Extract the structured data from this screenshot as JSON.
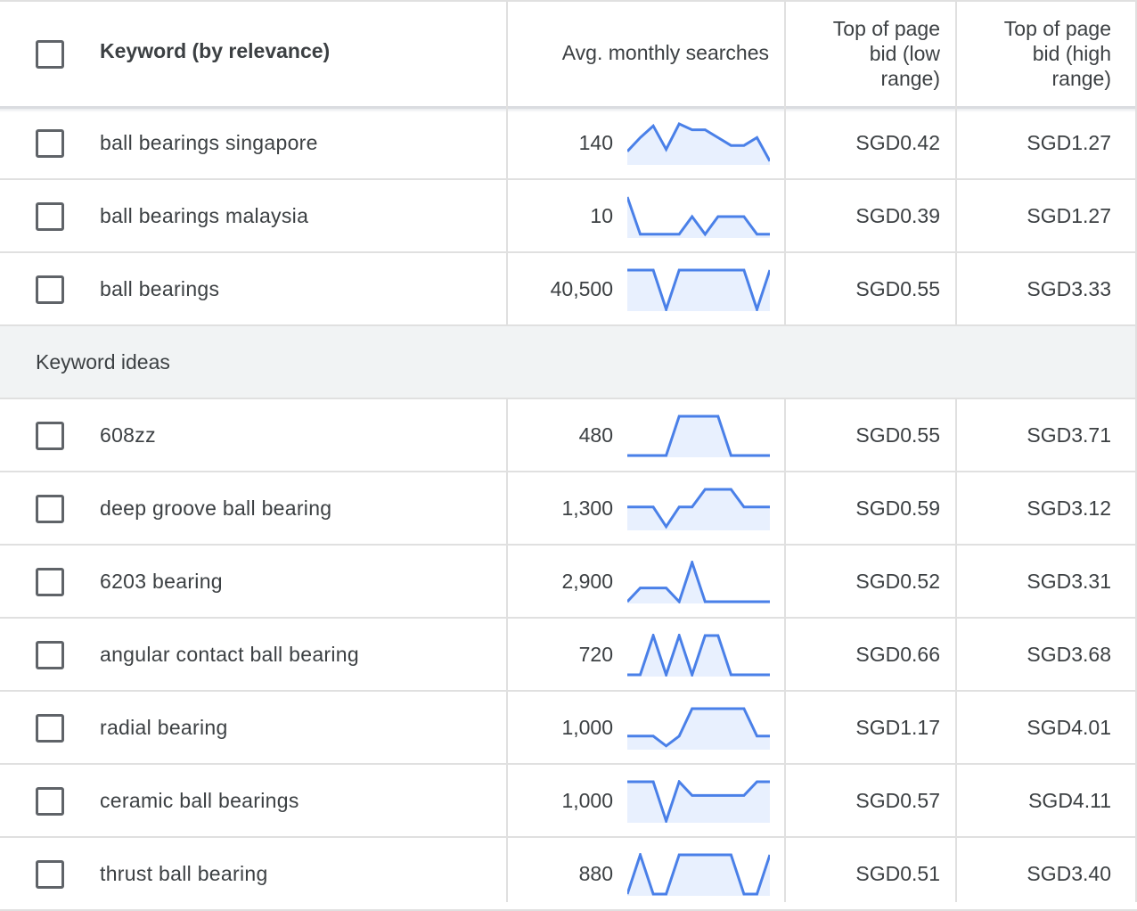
{
  "header": {
    "keyword_label": "Keyword (by relevance)",
    "avg_label": "Avg. monthly searches",
    "low_bid_label": "Top of page\nbid (low\nrange)",
    "high_bid_label": "Top of page\nbid (high\nrange)"
  },
  "colors": {
    "spark_line": "#4a80e8",
    "spark_fill": "#e8f0fe",
    "section_bg": "#f1f3f4"
  },
  "rows": [
    {
      "keyword": "ball bearings singapore",
      "searches": "140",
      "low_bid": "SGD0.42",
      "high_bid": "SGD1.27",
      "trend": [
        0.3,
        0.65,
        0.95,
        0.35,
        1.0,
        0.85,
        0.85,
        0.65,
        0.45,
        0.45,
        0.65,
        0.05
      ]
    },
    {
      "keyword": "ball bearings malaysia",
      "searches": "10",
      "low_bid": "SGD0.39",
      "high_bid": "SGD1.27",
      "trend": [
        1.0,
        0.05,
        0.05,
        0.05,
        0.05,
        0.5,
        0.05,
        0.5,
        0.5,
        0.5,
        0.05,
        0.05
      ]
    },
    {
      "keyword": "ball bearings",
      "searches": "40,500",
      "low_bid": "SGD0.55",
      "high_bid": "SGD3.33",
      "trend": [
        1.0,
        1.0,
        1.0,
        0.0,
        1.0,
        1.0,
        1.0,
        1.0,
        1.0,
        1.0,
        0.0,
        1.0
      ]
    },
    {
      "keyword": "608zz",
      "searches": "480",
      "low_bid": "SGD0.55",
      "high_bid": "SGD3.71",
      "trend": [
        0.0,
        0.0,
        0.0,
        0.0,
        1.0,
        1.0,
        1.0,
        1.0,
        0.0,
        0.0,
        0.0,
        0.0
      ]
    },
    {
      "keyword": "deep groove ball bearing",
      "searches": "1,300",
      "low_bid": "SGD0.59",
      "high_bid": "SGD3.12",
      "trend": [
        0.55,
        0.55,
        0.55,
        0.05,
        0.55,
        0.55,
        1.0,
        1.0,
        1.0,
        0.55,
        0.55,
        0.55
      ]
    },
    {
      "keyword": "6203 bearing",
      "searches": "2,900",
      "low_bid": "SGD0.52",
      "high_bid": "SGD3.31",
      "trend": [
        0.0,
        0.35,
        0.35,
        0.35,
        0.0,
        1.0,
        0.0,
        0.0,
        0.0,
        0.0,
        0.0,
        0.0
      ]
    },
    {
      "keyword": "angular contact ball bearing",
      "searches": "720",
      "low_bid": "SGD0.66",
      "high_bid": "SGD3.68",
      "trend": [
        0.0,
        0.0,
        1.0,
        0.0,
        1.0,
        0.0,
        1.0,
        1.0,
        0.0,
        0.0,
        0.0,
        0.0
      ]
    },
    {
      "keyword": "radial bearing",
      "searches": "1,000",
      "low_bid": "SGD1.17",
      "high_bid": "SGD4.01",
      "trend": [
        0.3,
        0.3,
        0.3,
        0.05,
        0.3,
        1.0,
        1.0,
        1.0,
        1.0,
        1.0,
        0.3,
        0.3
      ]
    },
    {
      "keyword": "ceramic ball bearings",
      "searches": "1,000",
      "low_bid": "SGD0.57",
      "high_bid": "SGD4.11",
      "trend": [
        1.0,
        1.0,
        1.0,
        0.0,
        1.0,
        0.65,
        0.65,
        0.65,
        0.65,
        0.65,
        1.0,
        1.0
      ]
    },
    {
      "keyword": "thrust ball bearing",
      "searches": "880",
      "low_bid": "SGD0.51",
      "high_bid": "SGD3.40",
      "trend": [
        0.0,
        1.0,
        0.0,
        0.0,
        1.0,
        1.0,
        1.0,
        1.0,
        1.0,
        0.0,
        0.0,
        1.0
      ]
    }
  ],
  "section": {
    "label": "Keyword ideas"
  }
}
